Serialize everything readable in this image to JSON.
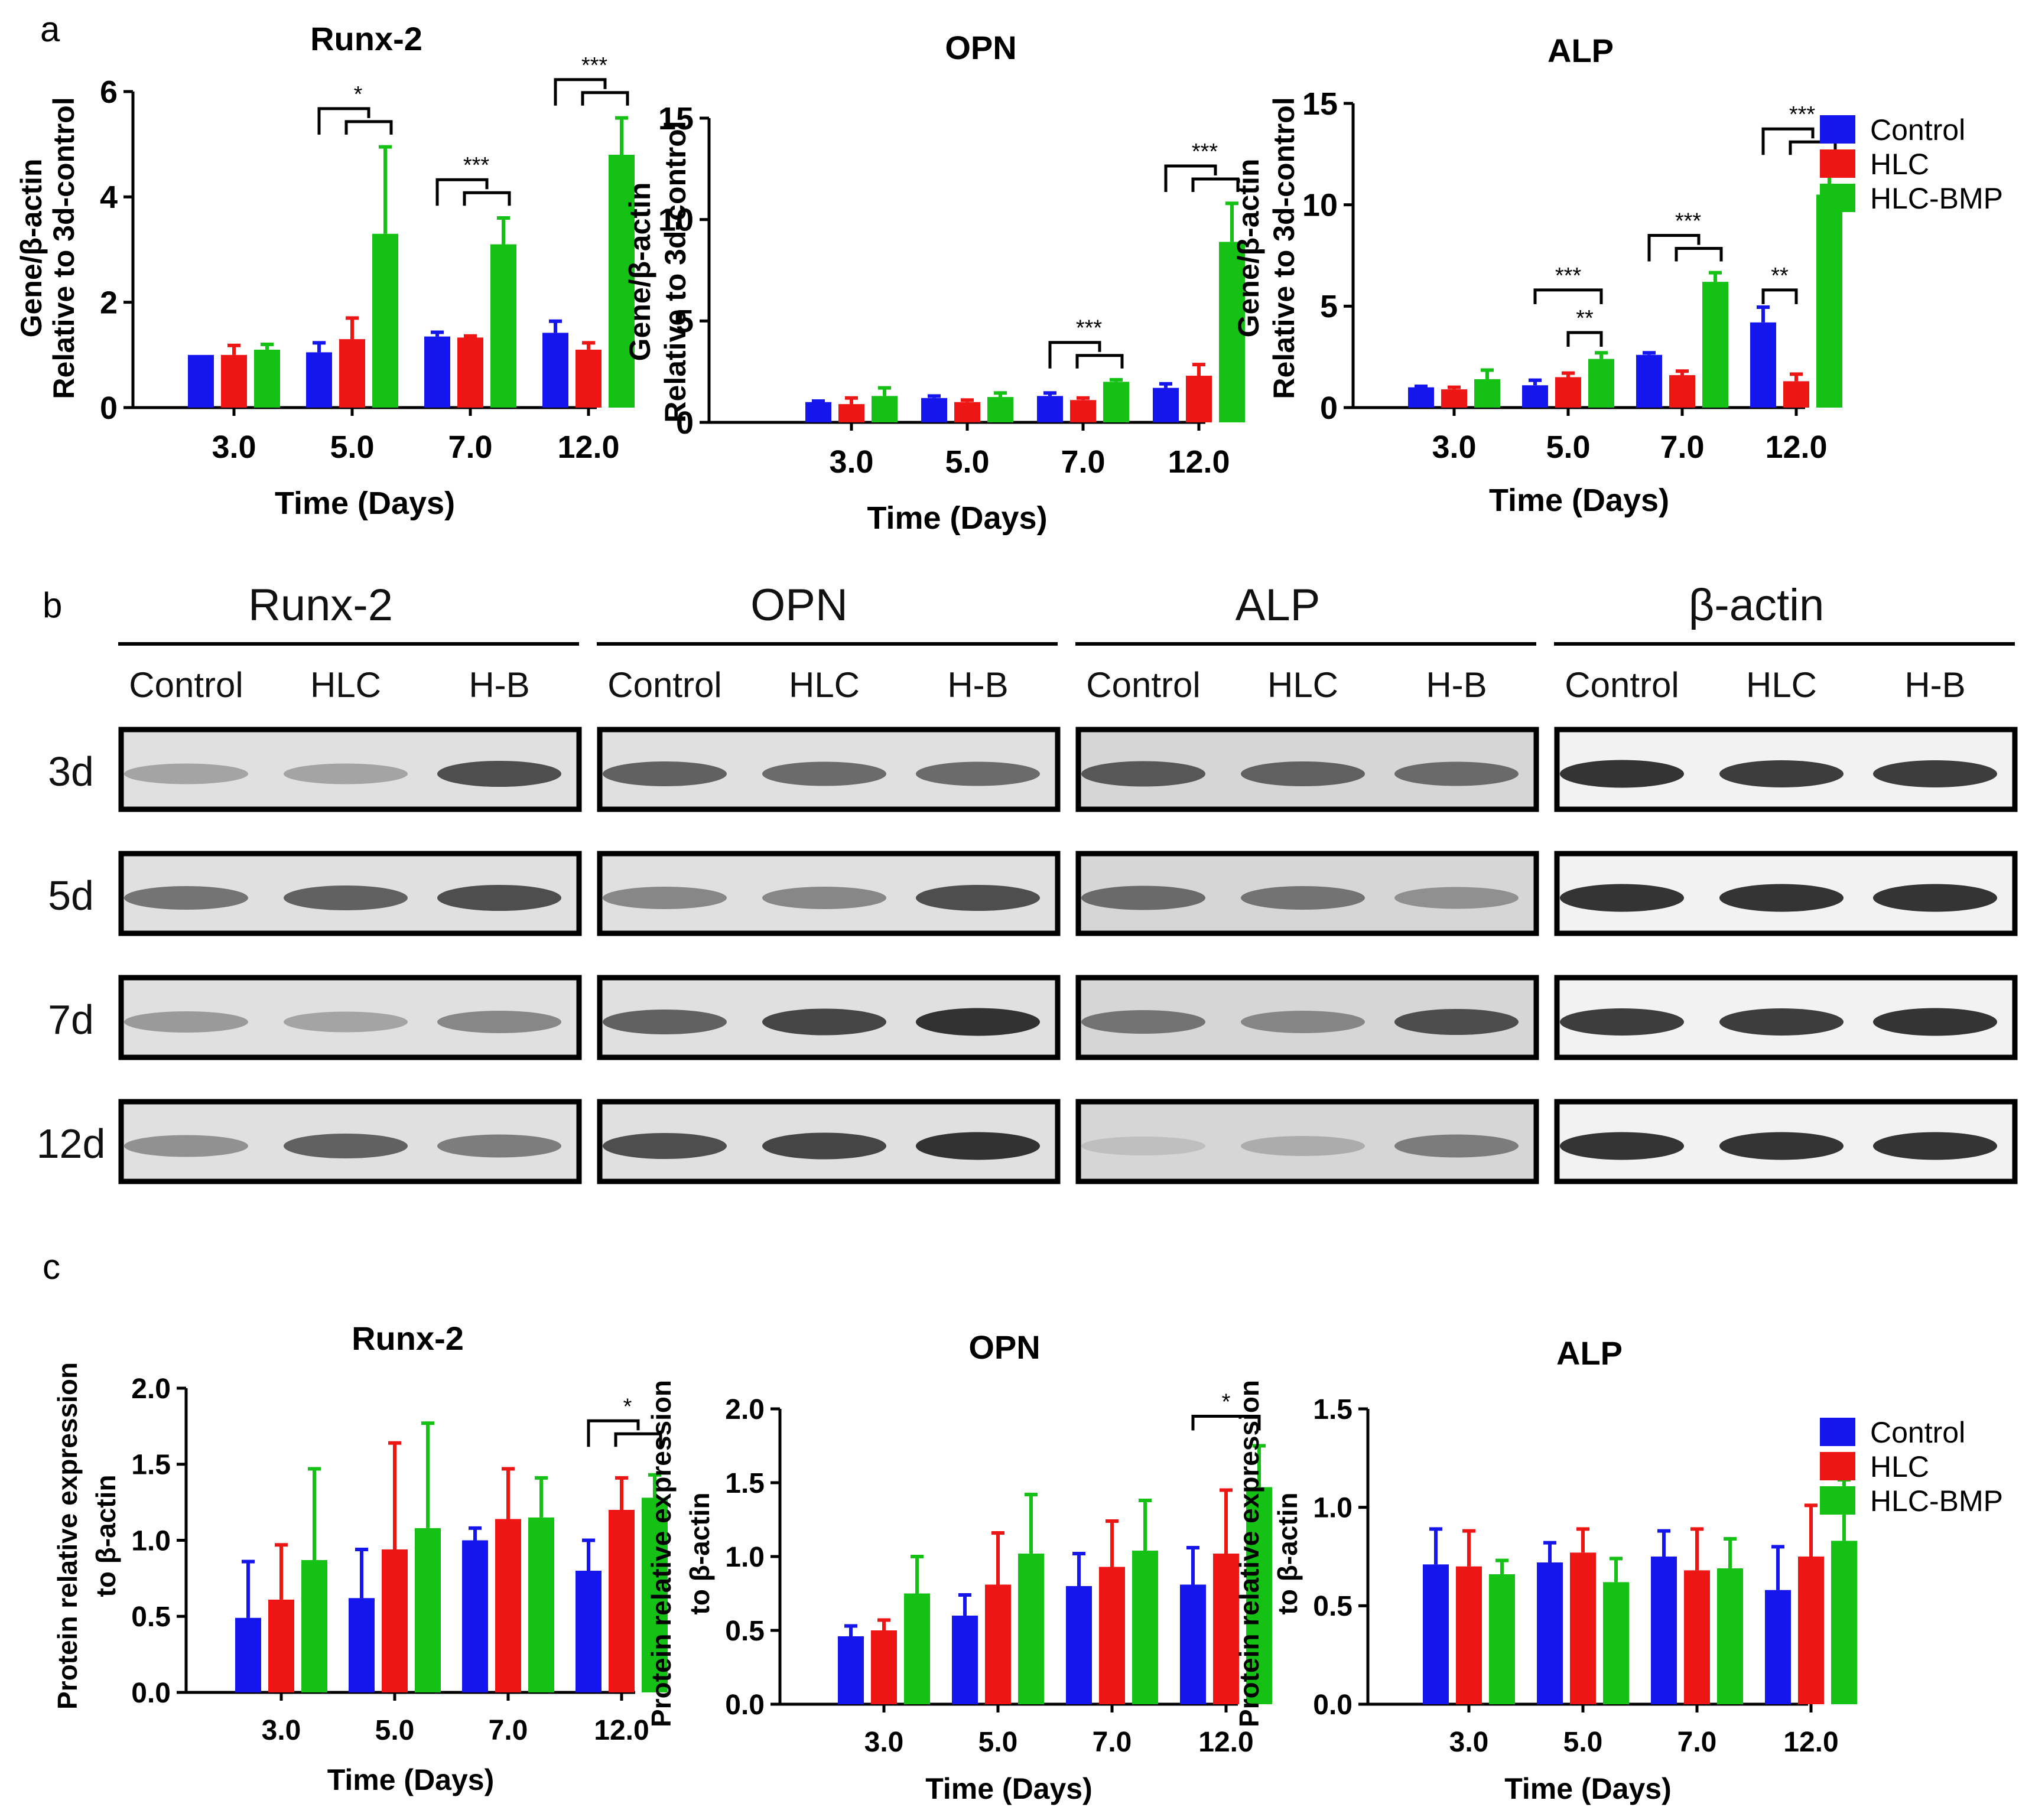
{
  "panels": {
    "a": "a",
    "b": "b",
    "c": "c"
  },
  "colors": {
    "Control": "#1515ee",
    "HLC": "#ee1515",
    "HLC-BMP": "#15c115"
  },
  "legend": [
    "Control",
    "HLC",
    "HLC-BMP"
  ],
  "chart_data": [
    {
      "id": "a-runx2",
      "type": "bar",
      "title": "Runx-2",
      "xlabel": "Time (Days)",
      "ylabel": [
        "Gene/β-actin",
        "Relative to 3d-control"
      ],
      "categories": [
        "3.0",
        "5.0",
        "7.0",
        "12.0"
      ],
      "ylim": [
        0,
        6
      ],
      "yticks": [
        "0",
        "2",
        "4",
        "6"
      ],
      "yticks_values": [
        0,
        2,
        4,
        6
      ],
      "series": [
        {
          "name": "Control",
          "values": [
            1.0,
            1.05,
            1.35,
            1.42
          ],
          "errors": [
            0.0,
            0.18,
            0.08,
            0.22
          ]
        },
        {
          "name": "HLC",
          "values": [
            1.0,
            1.3,
            1.33,
            1.1
          ],
          "errors": [
            0.18,
            0.4,
            0.03,
            0.13
          ]
        },
        {
          "name": "HLC-BMP",
          "values": [
            1.1,
            3.3,
            3.1,
            4.8
          ],
          "errors": [
            0.1,
            1.65,
            0.5,
            0.7
          ]
        }
      ],
      "significance": [
        {
          "cat": 1,
          "text": "*",
          "pairs": [
            [
              0,
              2
            ],
            [
              1,
              2
            ]
          ]
        },
        {
          "cat": 2,
          "text": "***",
          "pairs": [
            [
              0,
              2
            ],
            [
              1,
              2
            ]
          ]
        },
        {
          "cat": 3,
          "text": "***",
          "pairs": [
            [
              0,
              2
            ],
            [
              1,
              2
            ]
          ]
        }
      ]
    },
    {
      "id": "a-opn",
      "type": "bar",
      "title": "OPN",
      "xlabel": "Time (Days)",
      "ylabel": [
        "Gene/β-actin",
        "Relative to 3d-control"
      ],
      "categories": [
        "3.0",
        "5.0",
        "7.0",
        "12.0"
      ],
      "ylim": [
        0,
        15
      ],
      "yticks": [
        "0",
        "5",
        "10",
        "15"
      ],
      "yticks_values": [
        0,
        5,
        10,
        15
      ],
      "series": [
        {
          "name": "Control",
          "values": [
            1.0,
            1.2,
            1.3,
            1.7
          ],
          "errors": [
            0.05,
            0.1,
            0.15,
            0.2
          ]
        },
        {
          "name": "HLC",
          "values": [
            0.9,
            1.0,
            1.1,
            2.3
          ],
          "errors": [
            0.3,
            0.1,
            0.1,
            0.55
          ]
        },
        {
          "name": "HLC-BMP",
          "values": [
            1.3,
            1.25,
            2.0,
            8.9
          ],
          "errors": [
            0.4,
            0.2,
            0.1,
            1.9
          ]
        }
      ],
      "significance": [
        {
          "cat": 2,
          "text": "***",
          "pairs": [
            [
              0,
              2
            ],
            [
              1,
              2
            ]
          ]
        },
        {
          "cat": 3,
          "text": "***",
          "pairs": [
            [
              0,
              2
            ],
            [
              1,
              2
            ]
          ]
        }
      ]
    },
    {
      "id": "a-alp",
      "type": "bar",
      "title": "ALP",
      "xlabel": "Time (Days)",
      "ylabel": [
        "Gene/β-actin",
        "Relative to 3d-control"
      ],
      "categories": [
        "3.0",
        "5.0",
        "7.0",
        "12.0"
      ],
      "ylim": [
        0,
        15
      ],
      "yticks": [
        "0",
        "5",
        "10",
        "15"
      ],
      "yticks_values": [
        0,
        5,
        10,
        15
      ],
      "series": [
        {
          "name": "Control",
          "values": [
            1.0,
            1.1,
            2.6,
            4.2
          ],
          "errors": [
            0.05,
            0.25,
            0.1,
            0.75
          ]
        },
        {
          "name": "HLC",
          "values": [
            0.9,
            1.5,
            1.6,
            1.3
          ],
          "errors": [
            0.1,
            0.2,
            0.2,
            0.35
          ]
        },
        {
          "name": "HLC-BMP",
          "values": [
            1.4,
            2.4,
            6.2,
            10.5
          ],
          "errors": [
            0.45,
            0.3,
            0.45,
            1.4
          ]
        }
      ],
      "significance": [
        {
          "cat": 1,
          "text": "***",
          "pairs": [
            [
              0,
              2
            ]
          ],
          "height": 5.8
        },
        {
          "cat": 1,
          "text": "**",
          "pairs": [
            [
              1,
              2
            ]
          ],
          "height": 3.7
        },
        {
          "cat": 2,
          "text": "***",
          "pairs": [
            [
              0,
              2
            ],
            [
              1,
              2
            ]
          ]
        },
        {
          "cat": 3,
          "text": "***",
          "pairs": [
            [
              0,
              2
            ],
            [
              1,
              2
            ]
          ]
        },
        {
          "cat": 3,
          "text": "**",
          "pairs": [
            [
              0,
              1
            ]
          ],
          "height": 5.8
        }
      ]
    },
    {
      "id": "c-runx2",
      "type": "bar",
      "title": "Runx-2",
      "xlabel": "Time (Days)",
      "ylabel": [
        "Protein relative expression",
        "to β-actin"
      ],
      "categories": [
        "3.0",
        "5.0",
        "7.0",
        "12.0"
      ],
      "ylim": [
        0,
        2.0
      ],
      "yticks": [
        "0.0",
        "0.5",
        "1.0",
        "1.5",
        "2.0"
      ],
      "yticks_values": [
        0,
        0.5,
        1.0,
        1.5,
        2.0
      ],
      "series": [
        {
          "name": "Control",
          "values": [
            0.49,
            0.62,
            1.0,
            0.8
          ],
          "errors": [
            0.37,
            0.32,
            0.08,
            0.2
          ]
        },
        {
          "name": "HLC",
          "values": [
            0.61,
            0.94,
            1.14,
            1.2
          ],
          "errors": [
            0.36,
            0.7,
            0.33,
            0.21
          ]
        },
        {
          "name": "HLC-BMP",
          "values": [
            0.87,
            1.08,
            1.15,
            1.28
          ],
          "errors": [
            0.6,
            0.69,
            0.26,
            0.15
          ]
        }
      ],
      "significance": [
        {
          "cat": 3,
          "text": "*",
          "pairs": [
            [
              0,
              2
            ],
            [
              1,
              2
            ]
          ],
          "height": 1.7
        }
      ]
    },
    {
      "id": "c-opn",
      "type": "bar",
      "title": "OPN",
      "xlabel": "Time (Days)",
      "ylabel": [
        "Protein relative expression",
        "to β-actin"
      ],
      "categories": [
        "3.0",
        "5.0",
        "7.0",
        "12.0"
      ],
      "ylim": [
        0,
        2.0
      ],
      "yticks": [
        "0.0",
        "0.5",
        "1.0",
        "1.5",
        "2.0"
      ],
      "yticks_values": [
        0,
        0.5,
        1.0,
        1.5,
        2.0
      ],
      "series": [
        {
          "name": "Control",
          "values": [
            0.46,
            0.6,
            0.8,
            0.81
          ],
          "errors": [
            0.07,
            0.14,
            0.22,
            0.25
          ]
        },
        {
          "name": "HLC",
          "values": [
            0.5,
            0.81,
            0.93,
            1.02
          ],
          "errors": [
            0.07,
            0.35,
            0.31,
            0.43
          ]
        },
        {
          "name": "HLC-BMP",
          "values": [
            0.75,
            1.02,
            1.04,
            1.47
          ],
          "errors": [
            0.25,
            0.4,
            0.34,
            0.28
          ]
        }
      ],
      "significance": [
        {
          "cat": 3,
          "text": "*",
          "pairs": [
            [
              0,
              2
            ]
          ],
          "height": 1.95
        }
      ]
    },
    {
      "id": "c-alp",
      "type": "bar",
      "title": "ALP",
      "xlabel": "Time (Days)",
      "ylabel": [
        "Protein relative expression",
        "to β-actin"
      ],
      "categories": [
        "3.0",
        "5.0",
        "7.0",
        "12.0"
      ],
      "ylim": [
        0,
        1.5
      ],
      "yticks": [
        "0.0",
        "0.5",
        "1.0",
        "1.5"
      ],
      "yticks_values": [
        0,
        0.5,
        1.0,
        1.5
      ],
      "series": [
        {
          "name": "Control",
          "values": [
            0.71,
            0.72,
            0.75,
            0.58
          ],
          "errors": [
            0.18,
            0.1,
            0.13,
            0.22
          ]
        },
        {
          "name": "HLC",
          "values": [
            0.7,
            0.77,
            0.68,
            0.75
          ],
          "errors": [
            0.18,
            0.12,
            0.21,
            0.26
          ]
        },
        {
          "name": "HLC-BMP",
          "values": [
            0.66,
            0.62,
            0.69,
            0.83
          ],
          "errors": [
            0.07,
            0.12,
            0.15,
            0.31
          ]
        }
      ],
      "significance": []
    }
  ],
  "western_blot": {
    "columns": [
      "Runx-2",
      "OPN",
      "ALP",
      "β-actin"
    ],
    "lanes": [
      "Control",
      "HLC",
      "H-B"
    ],
    "rows": [
      "3d",
      "5d",
      "7d",
      "12d"
    ],
    "intensity": [
      [
        [
          0.35,
          0.35,
          0.8
        ],
        [
          0.7,
          0.65,
          0.65
        ],
        [
          0.75,
          0.7,
          0.65
        ],
        [
          0.95,
          0.9,
          0.9
        ]
      ],
      [
        [
          0.6,
          0.7,
          0.8
        ],
        [
          0.5,
          0.5,
          0.8
        ],
        [
          0.65,
          0.6,
          0.45
        ],
        [
          0.95,
          0.95,
          0.95
        ]
      ],
      [
        [
          0.4,
          0.35,
          0.5
        ],
        [
          0.7,
          0.85,
          0.95
        ],
        [
          0.6,
          0.5,
          0.8
        ],
        [
          0.9,
          0.9,
          0.95
        ]
      ],
      [
        [
          0.45,
          0.7,
          0.55
        ],
        [
          0.8,
          0.85,
          0.95
        ],
        [
          0.2,
          0.3,
          0.55
        ],
        [
          0.95,
          0.95,
          0.95
        ]
      ]
    ]
  }
}
